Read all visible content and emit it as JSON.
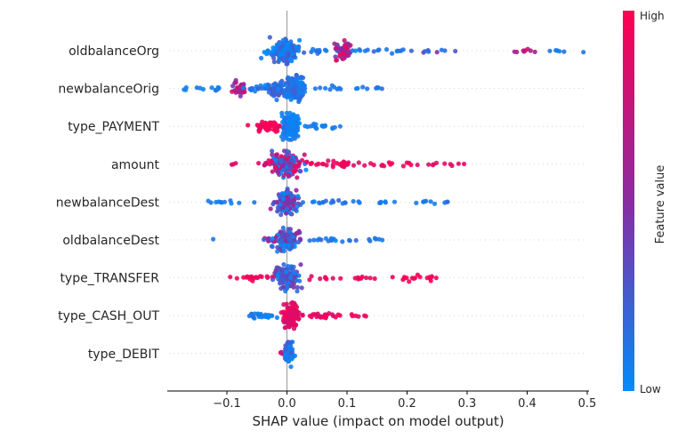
{
  "chart_data": {
    "type": "beeswarm",
    "library_style": "shap-summary-plot",
    "title": "",
    "xlabel": "SHAP value (impact on model output)",
    "x_tick_values": [
      -0.1,
      0.0,
      0.1,
      0.2,
      0.3,
      0.4,
      0.5
    ],
    "x_tick_labels": [
      "−0.1",
      "0.0",
      "0.1",
      "0.2",
      "0.3",
      "0.4",
      "0.5"
    ],
    "xlim": [
      -0.196,
      0.5
    ],
    "grid": "dotted-horizontal",
    "zero_line": true,
    "colorbar": {
      "label": "Feature value",
      "high": "High",
      "low": "Low",
      "high_color": "#ff0051",
      "mid_color": "#8a2ba2",
      "low_color": "#008bfb"
    },
    "features": [
      {
        "name": "oldbalanceOrg",
        "clusters": [
          {
            "x": -0.005,
            "sx": 0.012,
            "n": 170,
            "h": 6,
            "v": 0.12,
            "vj": 0.35
          },
          {
            "x": 0.05,
            "sx": 0.015,
            "n": 12,
            "h": 1.5,
            "v": 0.1,
            "vj": 0.15
          },
          {
            "x": 0.093,
            "sx": 0.006,
            "n": 60,
            "h": 5,
            "v": 0.6,
            "vj": 0.8
          },
          {
            "x": 0.15,
            "sx": 0.03,
            "n": 16,
            "h": 1.5,
            "v": 0.1,
            "vj": 0.2
          },
          {
            "x": 0.25,
            "sx": 0.03,
            "n": 9,
            "h": 1,
            "v": 0.25,
            "vj": 0.5
          },
          {
            "x": 0.4,
            "sx": 0.015,
            "n": 8,
            "h": 1.5,
            "v": 0.75,
            "vj": 0.5
          },
          {
            "x": 0.45,
            "sx": 0.02,
            "n": 6,
            "h": 1,
            "v": 0.1,
            "vj": 0.15
          }
        ]
      },
      {
        "name": "newbalanceOrig",
        "clusters": [
          {
            "x": -0.14,
            "sx": 0.018,
            "n": 12,
            "h": 1,
            "v": 0.08,
            "vj": 0.1
          },
          {
            "x": -0.08,
            "sx": 0.006,
            "n": 30,
            "h": 4,
            "v": 0.6,
            "vj": 0.55
          },
          {
            "x": -0.05,
            "sx": 0.01,
            "n": 14,
            "h": 1.5,
            "v": 0.12,
            "vj": 0.15
          },
          {
            "x": -0.015,
            "sx": 0.01,
            "n": 70,
            "h": 5,
            "v": 0.15,
            "vj": 0.3
          },
          {
            "x": 0.013,
            "sx": 0.008,
            "n": 150,
            "h": 7,
            "v": 0.12,
            "vj": 0.25
          },
          {
            "x": 0.07,
            "sx": 0.02,
            "n": 10,
            "h": 1,
            "v": 0.1,
            "vj": 0.1
          },
          {
            "x": 0.14,
            "sx": 0.02,
            "n": 8,
            "h": 1,
            "v": 0.1,
            "vj": 0.1
          }
        ]
      },
      {
        "name": "type_PAYMENT",
        "clusters": [
          {
            "x": -0.03,
            "sx": 0.011,
            "n": 55,
            "h": 3,
            "v": 0.95,
            "vj": 0.12
          },
          {
            "x": 0.006,
            "sx": 0.006,
            "n": 150,
            "h": 7,
            "v": 0.06,
            "vj": 0.15
          },
          {
            "x": 0.05,
            "sx": 0.018,
            "n": 18,
            "h": 1.2,
            "v": 0.08,
            "vj": 0.1
          }
        ]
      },
      {
        "name": "amount",
        "clusters": [
          {
            "x": -0.09,
            "sx": 0.003,
            "n": 3,
            "h": 0.8,
            "v": 0.9,
            "vj": 0.1
          },
          {
            "x": -0.035,
            "sx": 0.009,
            "n": 9,
            "h": 1,
            "v": 0.75,
            "vj": 0.3
          },
          {
            "x": 0.0,
            "sx": 0.012,
            "n": 170,
            "h": 7,
            "v": 0.45,
            "vj": 0.95
          },
          {
            "x": 0.08,
            "sx": 0.03,
            "n": 26,
            "h": 1.8,
            "v": 0.92,
            "vj": 0.15
          },
          {
            "x": 0.17,
            "sx": 0.03,
            "n": 14,
            "h": 1.2,
            "v": 0.92,
            "vj": 0.15
          },
          {
            "x": 0.26,
            "sx": 0.025,
            "n": 10,
            "h": 1,
            "v": 0.9,
            "vj": 0.15
          }
        ]
      },
      {
        "name": "newbalanceDest",
        "clusters": [
          {
            "x": -0.08,
            "sx": 0.025,
            "n": 12,
            "h": 1,
            "v": 0.1,
            "vj": 0.12
          },
          {
            "x": 0.0,
            "sx": 0.01,
            "n": 140,
            "h": 6.5,
            "v": 0.3,
            "vj": 0.7
          },
          {
            "x": 0.07,
            "sx": 0.03,
            "n": 16,
            "h": 1.2,
            "v": 0.12,
            "vj": 0.15
          },
          {
            "x": 0.16,
            "sx": 0.02,
            "n": 8,
            "h": 1,
            "v": 0.1,
            "vj": 0.1
          },
          {
            "x": 0.24,
            "sx": 0.02,
            "n": 10,
            "h": 1.2,
            "v": 0.12,
            "vj": 0.15
          }
        ]
      },
      {
        "name": "oldbalanceDest",
        "clusters": [
          {
            "x": -0.125,
            "sx": 0.002,
            "n": 1,
            "h": 0.5,
            "v": 0.1,
            "vj": 0.0
          },
          {
            "x": -0.03,
            "sx": 0.008,
            "n": 12,
            "h": 1.2,
            "v": 0.5,
            "vj": 0.6
          },
          {
            "x": 0.0,
            "sx": 0.009,
            "n": 130,
            "h": 5.5,
            "v": 0.25,
            "vj": 0.6
          },
          {
            "x": 0.06,
            "sx": 0.02,
            "n": 14,
            "h": 1.2,
            "v": 0.15,
            "vj": 0.3
          },
          {
            "x": 0.13,
            "sx": 0.015,
            "n": 8,
            "h": 1,
            "v": 0.1,
            "vj": 0.1
          }
        ]
      },
      {
        "name": "type_TRANSFER",
        "clusters": [
          {
            "x": -0.055,
            "sx": 0.018,
            "n": 22,
            "h": 1.5,
            "v": 0.95,
            "vj": 0.1
          },
          {
            "x": 0.0,
            "sx": 0.009,
            "n": 140,
            "h": 6,
            "v": 0.25,
            "vj": 0.5
          },
          {
            "x": 0.06,
            "sx": 0.015,
            "n": 8,
            "h": 1,
            "v": 0.9,
            "vj": 0.15
          },
          {
            "x": 0.13,
            "sx": 0.015,
            "n": 9,
            "h": 1,
            "v": 0.92,
            "vj": 0.1
          },
          {
            "x": 0.22,
            "sx": 0.025,
            "n": 18,
            "h": 1.5,
            "v": 0.95,
            "vj": 0.1
          }
        ]
      },
      {
        "name": "type_CASH_OUT",
        "clusters": [
          {
            "x": -0.04,
            "sx": 0.015,
            "n": 24,
            "h": 1.5,
            "v": 0.07,
            "vj": 0.1
          },
          {
            "x": 0.008,
            "sx": 0.007,
            "n": 140,
            "h": 6.5,
            "v": 0.88,
            "vj": 0.2
          },
          {
            "x": 0.06,
            "sx": 0.02,
            "n": 26,
            "h": 1.8,
            "v": 0.9,
            "vj": 0.15
          },
          {
            "x": 0.115,
            "sx": 0.01,
            "n": 6,
            "h": 1,
            "v": 0.9,
            "vj": 0.1
          }
        ]
      },
      {
        "name": "type_DEBIT",
        "clusters": [
          {
            "x": -0.008,
            "sx": 0.003,
            "n": 5,
            "h": 1,
            "v": 0.85,
            "vj": 0.2
          },
          {
            "x": 0.003,
            "sx": 0.004,
            "n": 70,
            "h": 5,
            "v": 0.12,
            "vj": 0.25
          }
        ]
      }
    ]
  }
}
